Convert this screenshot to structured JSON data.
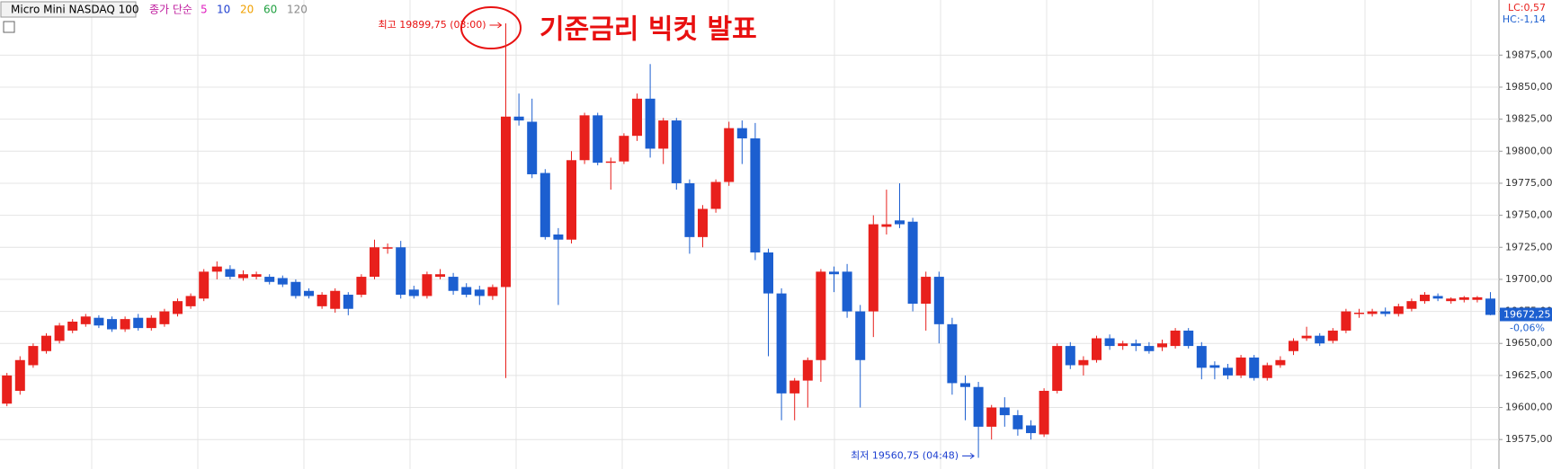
{
  "chart_data": {
    "type": "candlestick",
    "title": "Micro Mini NASDAQ 100",
    "indicator_label": "종가 단순",
    "ma_periods": [
      5,
      10,
      20,
      60,
      120
    ],
    "ma_colors": [
      "#e020c0",
      "#1f3fd0",
      "#f0a000",
      "#20a040",
      "#888888"
    ],
    "up_color": "#e8201c",
    "down_color": "#1c5fd0",
    "open": [
      19603,
      19613,
      19633,
      19644,
      19652,
      19660,
      19665,
      19670,
      19669,
      19661,
      19670,
      19662,
      19665,
      19673,
      19679,
      19685,
      19706,
      19708,
      19701,
      19702,
      19702,
      19701,
      19698,
      19691,
      19679,
      19677,
      19688,
      19688,
      19702,
      19724,
      19725,
      19692,
      19687,
      19702,
      19702,
      19694,
      19692,
      19687,
      19694,
      19827,
      19823,
      19783,
      19735,
      19731,
      19793,
      19828,
      19791,
      19792,
      19812,
      19841,
      19802,
      19824,
      19775,
      19733,
      19755,
      19776,
      19818,
      19810,
      19721,
      19689,
      19611,
      19621,
      19637,
      19706,
      19706,
      19675,
      19675,
      19741,
      19746,
      19745,
      19681,
      19702,
      19665,
      19619,
      19616,
      19585,
      19600,
      19594,
      19586,
      19579,
      19613,
      19648,
      19633,
      19637,
      19654,
      19648,
      19650,
      19648,
      19647,
      19648,
      19660,
      19648,
      19633,
      19631,
      19625,
      19639,
      19623,
      19633,
      19644,
      19654,
      19656,
      19652,
      19660,
      19673,
      19673,
      19675,
      19673,
      19677,
      19683,
      19687,
      19683,
      19684,
      19684,
      19685
    ],
    "high": [
      19627,
      19640,
      19650,
      19658,
      19666,
      19669,
      19673,
      19672,
      19671,
      19671,
      19673,
      19672,
      19677,
      19685,
      19689,
      19708,
      19714,
      19711,
      19707,
      19706,
      19704,
      19703,
      19700,
      19693,
      19690,
      19693,
      19690,
      19704,
      19731,
      19728,
      19730,
      19695,
      19706,
      19708,
      19705,
      19697,
      19695,
      19696,
      19899.75,
      19845,
      19841,
      19786,
      19740,
      19800,
      19830,
      19830,
      19795,
      19814,
      19845,
      19868,
      19826,
      19826,
      19778,
      19758,
      19778,
      19823,
      19824,
      19822,
      19724,
      19693,
      19623,
      19639,
      19708,
      19710,
      19712,
      19680,
      19750,
      19770,
      19775,
      19748,
      19706,
      19706,
      19670,
      19625,
      19620,
      19602,
      19608,
      19598,
      19590,
      19615,
      19650,
      19651,
      19640,
      19656,
      19657,
      19652,
      19653,
      19651,
      19653,
      19662,
      19662,
      19651,
      19636,
      19634,
      19641,
      19641,
      19635,
      19640,
      19654,
      19663,
      19658,
      19662,
      19677,
      19677,
      19677,
      19678,
      19681,
      19685,
      19690,
      19689,
      19686,
      19687,
      19687,
      19690
    ],
    "low": [
      19601,
      19610,
      19631,
      19642,
      19650,
      19658,
      19663,
      19662,
      19659,
      19659,
      19660,
      19660,
      19663,
      19671,
      19677,
      19683,
      19700,
      19700,
      19699,
      19700,
      19696,
      19694,
      19685,
      19685,
      19677,
      19674,
      19672,
      19686,
      19700,
      19720,
      19685,
      19685,
      19685,
      19700,
      19688,
      19686,
      19680,
      19684,
      19623,
      19820,
      19779,
      19731,
      19680,
      19728,
      19790,
      19789,
      19770,
      19790,
      19808,
      19795,
      19790,
      19770,
      19720,
      19725,
      19752,
      19773,
      19790,
      19715,
      19640,
      19590,
      19590,
      19600,
      19620,
      19690,
      19670,
      19600,
      19655,
      19735,
      19740,
      19675,
      19660,
      19650,
      19610,
      19590,
      19560.75,
      19575,
      19585,
      19578,
      19575,
      19577,
      19611,
      19630,
      19625,
      19635,
      19645,
      19645,
      19644,
      19642,
      19644,
      19646,
      19646,
      19622,
      19622,
      19622,
      19623,
      19621,
      19621,
      19631,
      19641,
      19652,
      19648,
      19650,
      19658,
      19670,
      19671,
      19671,
      19671,
      19675,
      19681,
      19683,
      19681,
      19682,
      19682,
      19672
    ],
    "close": [
      19625,
      19637,
      19648,
      19656,
      19664,
      19667,
      19671,
      19664,
      19661,
      19669,
      19662,
      19670,
      19675,
      19683,
      19687,
      19706,
      19710,
      19702,
      19704,
      19704,
      19698,
      19696,
      19687,
      19687,
      19688,
      19691,
      19677,
      19702,
      19725,
      19725,
      19688,
      19687,
      19704,
      19704,
      19691,
      19688,
      19687,
      19694,
      19827,
      19824,
      19782,
      19733,
      19731,
      19793,
      19828,
      19791,
      19792,
      19812,
      19841,
      19802,
      19824,
      19775,
      19733,
      19755,
      19776,
      19818,
      19810,
      19721,
      19689,
      19611,
      19621,
      19637,
      19706,
      19704,
      19675,
      19637,
      19743,
      19743,
      19743,
      19681,
      19702,
      19665,
      19619,
      19616,
      19585,
      19600,
      19594,
      19583,
      19580,
      19613,
      19648,
      19633,
      19637,
      19654,
      19648,
      19650,
      19648,
      19644,
      19650,
      19660,
      19648,
      19631,
      19631,
      19625,
      19639,
      19623,
      19633,
      19637,
      19652,
      19656,
      19650,
      19660,
      19675,
      19674,
      19675,
      19673,
      19679,
      19683,
      19688,
      19685,
      19685,
      19686,
      19686,
      19672.25
    ],
    "ylim": [
      19552,
      19918
    ],
    "yticks": [
      {
        "value": 19575,
        "label": "19575,00"
      },
      {
        "value": 19600,
        "label": "19600,00"
      },
      {
        "value": 19625,
        "label": "19625,00"
      },
      {
        "value": 19650,
        "label": "19650,00"
      },
      {
        "value": 19675,
        "label": "19675,00"
      },
      {
        "value": 19700,
        "label": "19700,00"
      },
      {
        "value": 19725,
        "label": "19725,00"
      },
      {
        "value": 19750,
        "label": "19750,00"
      },
      {
        "value": 19775,
        "label": "19775,00"
      },
      {
        "value": 19800,
        "label": "19800,00"
      },
      {
        "value": 19825,
        "label": "19825,00"
      },
      {
        "value": 19850,
        "label": "19850,00"
      },
      {
        "value": 19875,
        "label": "19875,00"
      }
    ],
    "grid": true,
    "last_price": {
      "value": 19672.25,
      "label": "19672,25"
    },
    "change_label": "-0,06%",
    "lc_label": "LC:0,57",
    "hc_label": "HC:-1,14",
    "high_label": "최고 19899,75 (03:00)",
    "low_label": "최저 19560,75 (04:48)",
    "headline": "기준금리 빅컷 발표"
  }
}
